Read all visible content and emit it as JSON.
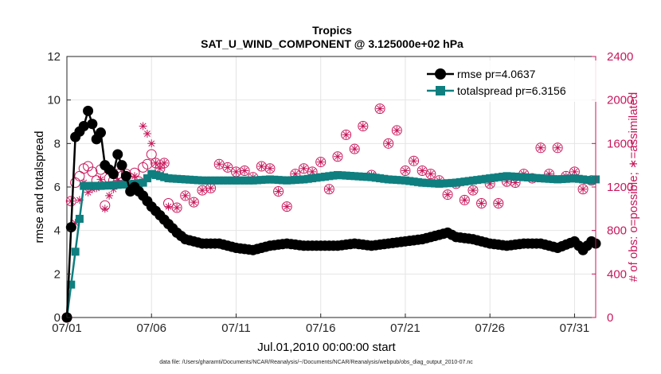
{
  "colors": {
    "rmse": "#000000",
    "spread": "#0f7f7f",
    "obs": "#c8175a",
    "grid": "#e4e4e4",
    "axis": "#262626"
  },
  "chart_data": {
    "type": "line",
    "title": "Tropics",
    "subtitle": "SAT_U_WIND_COMPONENT @ 3.125000e+02 hPa",
    "xlabel": "Jul.01,2010 00:00:00 start",
    "ylabel_left": "rmse and totalspread",
    "ylabel_right": "# of obs: o=possible; ∗=assimilated",
    "xlim": [
      0,
      31.25
    ],
    "ylim_left": [
      0,
      12
    ],
    "ylim_right": [
      0,
      2400
    ],
    "x_ticks": [
      0,
      5,
      10,
      15,
      20,
      25,
      30
    ],
    "x_tick_labels": [
      "07/01",
      "07/06",
      "07/11",
      "07/16",
      "07/21",
      "07/26",
      "07/31"
    ],
    "y_left_ticks": [
      "0",
      "2",
      "4",
      "6",
      "8",
      "10",
      "12"
    ],
    "y_right_ticks": [
      "0",
      "400",
      "800",
      "1200",
      "1600",
      "2000",
      "2400"
    ],
    "grid": true,
    "legend_position": "top-right",
    "footnote": "data file: /Users/gharamti/Documents/NCAR/Reanalysis/~/Documents/NCAR/Reanalysis/webpub/obs_diag_output_2010-07.nc",
    "series": [
      {
        "name": "rmse pr=4.0637",
        "axis": "left",
        "anchors_x": [
          0,
          0.5,
          1,
          1.25,
          1.5,
          1.75,
          2,
          2.25,
          2.5,
          2.75,
          3,
          3.5,
          3.75,
          4,
          4.25,
          4.5,
          5,
          5.5,
          6,
          6.5,
          7,
          7.5,
          8,
          9,
          10,
          11,
          12,
          13,
          14,
          15,
          16,
          17,
          18,
          19,
          20,
          21,
          22,
          22.5,
          23,
          24,
          25,
          26,
          27,
          28,
          29,
          30,
          30.5,
          31,
          31.25
        ],
        "anchors_y": [
          0,
          8.3,
          8.8,
          9.5,
          8.9,
          8.2,
          8.5,
          7.0,
          6.8,
          6.6,
          7.5,
          6.5,
          5.8,
          6.0,
          5.8,
          5.6,
          5.1,
          4.7,
          4.3,
          3.9,
          3.6,
          3.5,
          3.4,
          3.4,
          3.2,
          3.1,
          3.3,
          3.4,
          3.3,
          3.3,
          3.3,
          3.4,
          3.3,
          3.4,
          3.5,
          3.6,
          3.8,
          3.9,
          3.7,
          3.6,
          3.4,
          3.3,
          3.4,
          3.4,
          3.2,
          3.5,
          3.1,
          3.5,
          3.4
        ],
        "points_per_day": 4
      },
      {
        "name": "totalspread pr=6.3156",
        "axis": "left",
        "anchors_x": [
          0,
          1,
          2,
          3,
          4,
          4.5,
          5,
          6,
          7,
          8,
          9,
          10,
          11,
          12,
          13,
          14,
          15,
          16,
          17,
          18,
          19,
          20,
          21,
          22,
          23,
          24,
          25,
          26,
          27,
          28,
          29,
          30,
          31,
          31.25
        ],
        "anchors_y": [
          0,
          6.05,
          6.05,
          6.1,
          6.15,
          6.2,
          6.6,
          6.4,
          6.35,
          6.3,
          6.3,
          6.3,
          6.3,
          6.35,
          6.3,
          6.35,
          6.45,
          6.55,
          6.5,
          6.45,
          6.35,
          6.3,
          6.2,
          6.15,
          6.2,
          6.3,
          6.4,
          6.5,
          6.45,
          6.4,
          6.35,
          6.4,
          6.3,
          6.35
        ],
        "points_per_day": 4
      },
      {
        "name": "possible obs",
        "axis": "right",
        "marker": "circle",
        "x": [
          0,
          0.25,
          0.5,
          0.75,
          1,
          1.25,
          1.5,
          1.75,
          2,
          2.25,
          2.5,
          2.75,
          3,
          3.25,
          3.5,
          3.75,
          4,
          4.25,
          4.5,
          4.75,
          5,
          5.25,
          5.5,
          5.75,
          6,
          6.5,
          7,
          7.5,
          8,
          8.5,
          9,
          9.5,
          10,
          10.5,
          11,
          11.5,
          12,
          12.5,
          13,
          13.5,
          14,
          14.5,
          15,
          15.5,
          16,
          16.5,
          17,
          17.5,
          18,
          18.5,
          19,
          19.5,
          20,
          20.5,
          21,
          21.5,
          22,
          22.5,
          23,
          23.5,
          24,
          24.5,
          25,
          25.5,
          26,
          26.5,
          27,
          27.5,
          28,
          28.5,
          29,
          29.5,
          30,
          30.5,
          31
        ],
        "y": [
          0,
          1070,
          1240,
          1300,
          1370,
          1390,
          1340,
          1260,
          1360,
          1030,
          1280,
          1260,
          1320,
          1300,
          1320,
          1280,
          1330,
          1250,
          1380,
          1410,
          1500,
          1420,
          1370,
          1420,
          1050,
          1010,
          1120,
          1060,
          1170,
          1190,
          1410,
          1380,
          1340,
          1350,
          1290,
          1390,
          1370,
          1160,
          1020,
          1320,
          1370,
          1340,
          1430,
          1180,
          1480,
          1680,
          1550,
          1760,
          1310,
          1920,
          1600,
          1720,
          1350,
          1440,
          1350,
          1320,
          1260,
          1130,
          1230,
          1080,
          1170,
          1050,
          1230,
          1050,
          1250,
          1240,
          1320,
          1280,
          1560,
          1320,
          1560,
          1300,
          1340,
          1180,
          1260
        ]
      },
      {
        "name": "assimilated obs",
        "axis": "right",
        "marker": "star",
        "x": [
          0,
          0.25,
          0.5,
          0.75,
          1,
          1.25,
          1.5,
          1.75,
          2,
          2.25,
          2.5,
          2.75,
          3,
          3.25,
          3.5,
          3.75,
          4,
          4.25,
          4.5,
          4.75,
          5,
          5.25,
          5.5,
          5.75,
          6,
          6.5,
          7,
          7.5,
          8,
          8.5,
          9,
          9.5,
          10,
          10.5,
          11,
          11.5,
          12,
          12.5,
          13,
          13.5,
          14,
          14.5,
          15,
          15.5,
          16,
          16.5,
          17,
          17.5,
          18,
          18.5,
          19,
          19.5,
          20,
          20.5,
          21,
          21.5,
          22,
          22.5,
          23,
          23.5,
          24,
          24.5,
          25,
          25.5,
          26,
          26.5,
          27,
          27.5,
          28,
          28.5,
          29,
          29.5,
          30,
          30.5,
          31
        ],
        "y": [
          0,
          1070,
          870,
          1080,
          1240,
          1150,
          1180,
          1190,
          1270,
          1000,
          1120,
          1180,
          1260,
          1230,
          1280,
          1200,
          1300,
          1210,
          1760,
          1690,
          1600,
          1420,
          1370,
          1420,
          1020,
          1010,
          1120,
          1060,
          1170,
          1190,
          1410,
          1380,
          1340,
          1350,
          1290,
          1390,
          1370,
          1160,
          1020,
          1320,
          1370,
          1340,
          1430,
          1180,
          1480,
          1680,
          1550,
          1760,
          1310,
          1920,
          1600,
          1720,
          1350,
          1440,
          1350,
          1320,
          1260,
          1130,
          1230,
          1080,
          1170,
          1050,
          1230,
          1050,
          1250,
          1240,
          1320,
          1280,
          1560,
          1320,
          1560,
          1300,
          1340,
          1180,
          1260
        ]
      }
    ]
  }
}
